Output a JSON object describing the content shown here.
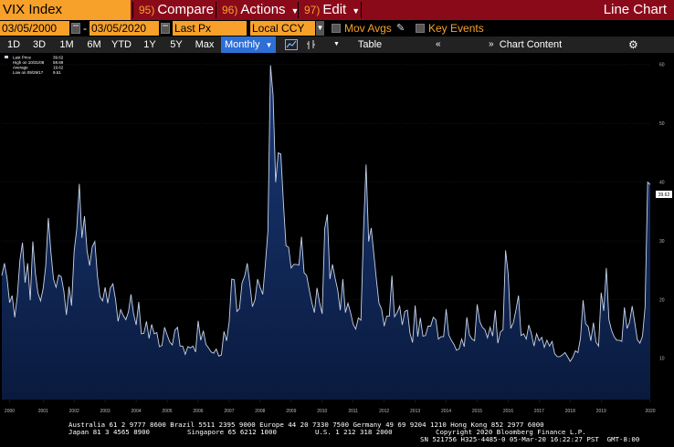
{
  "titlebar": {
    "ticker": "VIX Index",
    "compare": {
      "num": "95)",
      "label": "Compare"
    },
    "actions": {
      "num": "96)",
      "label": "Actions"
    },
    "edit": {
      "num": "97)",
      "label": "Edit"
    },
    "chart_type": "Line Chart"
  },
  "fields": {
    "start_date": "03/05/2000",
    "end_date": "03/05/2020",
    "price_field": "Last Px",
    "currency": "Local CCY",
    "mov_avgs_label": "Mov Avgs",
    "key_events_label": "Key Events"
  },
  "toolbar": {
    "periods": [
      "1D",
      "3D",
      "1M",
      "6M",
      "YTD",
      "1Y",
      "5Y",
      "Max"
    ],
    "frequency": "Monthly",
    "table_label": "Table",
    "chart_content_label": "Chart Content"
  },
  "legend": {
    "last_price_label": "Last Price",
    "last_price_value": "39.62",
    "high_label": "High on 10/31/08",
    "high_value": "59.89",
    "average_label": "Average",
    "average_value": "19.62",
    "low_label": "Low on 09/29/17",
    "low_value": "9.51"
  },
  "colors": {
    "accent": "#f7a12a",
    "titlebar": "#8b0a1a",
    "line": "#c8d4ea",
    "fill": "#0d2452",
    "selected": "#2e6fd6"
  },
  "chart_data": {
    "type": "area",
    "title": "",
    "xlabel": "",
    "ylabel": "",
    "y_ticks": [
      10,
      20,
      30,
      40,
      50,
      60
    ],
    "x_ticks": [
      "2000",
      "2001",
      "2002",
      "2003",
      "2004",
      "2005",
      "2006",
      "2007",
      "2008",
      "2009",
      "2010",
      "2011",
      "2012",
      "2013",
      "2014",
      "2015",
      "2016",
      "2017",
      "2018",
      "2019",
      "2020"
    ],
    "ylim": [
      3,
      62
    ],
    "x_range": [
      "2000-03",
      "2020-03"
    ],
    "last_value_label": "39.62",
    "series": [
      {
        "name": "Last Price",
        "x_start": "2000-03",
        "frequency": "monthly",
        "values": [
          24.1,
          26.2,
          23.7,
          19.5,
          20.7,
          17.0,
          20.6,
          26.7,
          29.7,
          22.9,
          26.2,
          19.9,
          29.9,
          24.5,
          21.1,
          19.8,
          21.9,
          25.8,
          33.9,
          28.1,
          23.5,
          22.1,
          24.2,
          23.9,
          21.5,
          17.4,
          22.2,
          19.0,
          28.3,
          32.0,
          39.7,
          30.5,
          34.2,
          28.3,
          25.8,
          29.0,
          29.9,
          24.1,
          20.5,
          19.8,
          22.1,
          19.4,
          22.0,
          22.7,
          20.1,
          16.3,
          18.3,
          17.3,
          16.6,
          17.9,
          20.9,
          17.6,
          15.7,
          19.6,
          14.2,
          14.3,
          16.3,
          13.4,
          15.8,
          14.2,
          14.4,
          12.0,
          12.2,
          15.3,
          14.0,
          12.8,
          12.3,
          14.8,
          15.3,
          12.1,
          12.1,
          10.7,
          12.0,
          11.8,
          12.1,
          11.1,
          16.4,
          13.1,
          14.7,
          12.4,
          11.8,
          11.1,
          10.9,
          11.6,
          10.4,
          10.6,
          14.6,
          13.0,
          16.2,
          23.5,
          23.4,
          18.0,
          18.5,
          22.9,
          24.0,
          26.2,
          22.7,
          18.8,
          20.0,
          23.5,
          22.1,
          20.9,
          26.0,
          31.7,
          59.9,
          54.8,
          40.0,
          45.0,
          44.8,
          36.5,
          29.2,
          28.9,
          25.4,
          26.0,
          26.0,
          25.9,
          30.7,
          24.6,
          24.1,
          21.7,
          19.5,
          17.8,
          22.0,
          19.5,
          17.6,
          32.1,
          34.5,
          23.5,
          26.0,
          23.7,
          21.7,
          18.2,
          23.5,
          17.8,
          19.4,
          17.8,
          15.8,
          15.0,
          16.9,
          16.5,
          31.6,
          43.0,
          29.9,
          32.2,
          27.8,
          23.4,
          19.4,
          18.4,
          15.5,
          17.2,
          17.2,
          24.1,
          17.1,
          17.8,
          18.9,
          15.7,
          18.0,
          18.2,
          14.3,
          12.7,
          19.0,
          13.7,
          16.9,
          13.8,
          13.9,
          15.5,
          15.5,
          17.0,
          16.6,
          13.3,
          13.7,
          13.7,
          18.4,
          14.0,
          13.1,
          12.4,
          11.4,
          11.6,
          13.3,
          12.0,
          17.0,
          14.0,
          13.3,
          13.0,
          19.2,
          16.3,
          15.3,
          14.9,
          13.5,
          15.3,
          13.8,
          18.2,
          12.6,
          14.5,
          14.9,
          28.4,
          24.4,
          15.1,
          16.1,
          18.2,
          20.7,
          13.9,
          14.2,
          13.3,
          15.7,
          14.2,
          12.1,
          14.2,
          13.0,
          13.6,
          11.9,
          13.1,
          12.1,
          12.9,
          10.8,
          10.3,
          10.3,
          10.6,
          11.0,
          10.3,
          9.5,
          10.2,
          11.3,
          11.0,
          13.5,
          19.9,
          15.9,
          15.4,
          13.0,
          16.1,
          12.8,
          12.1,
          21.2,
          18.1,
          25.4,
          16.6,
          14.8,
          13.7,
          13.1,
          13.1,
          12.9,
          18.7,
          15.1,
          16.2,
          18.9,
          16.1,
          13.2,
          12.6,
          13.8,
          18.8,
          40.0,
          39.6
        ]
      }
    ]
  },
  "footer": {
    "line1": "Australia 61 2 9777 8600 Brazil 5511 2395 9000 Europe 44 20 7330 7500 Germany 49 69 9204 1210 Hong Kong 852 2977 6000",
    "line2_left": "Japan 81 3 4565 8900",
    "line2_mid": "Singapore 65 6212 1000",
    "line2_mid2": "U.S. 1 212 318 2000",
    "line2_right": "Copyright 2020 Bloomberg Finance L.P.",
    "line3_right": "SN 521756 H325-4485-0 05-Mar-20 16:22:27 PST  GMT-8:00"
  }
}
